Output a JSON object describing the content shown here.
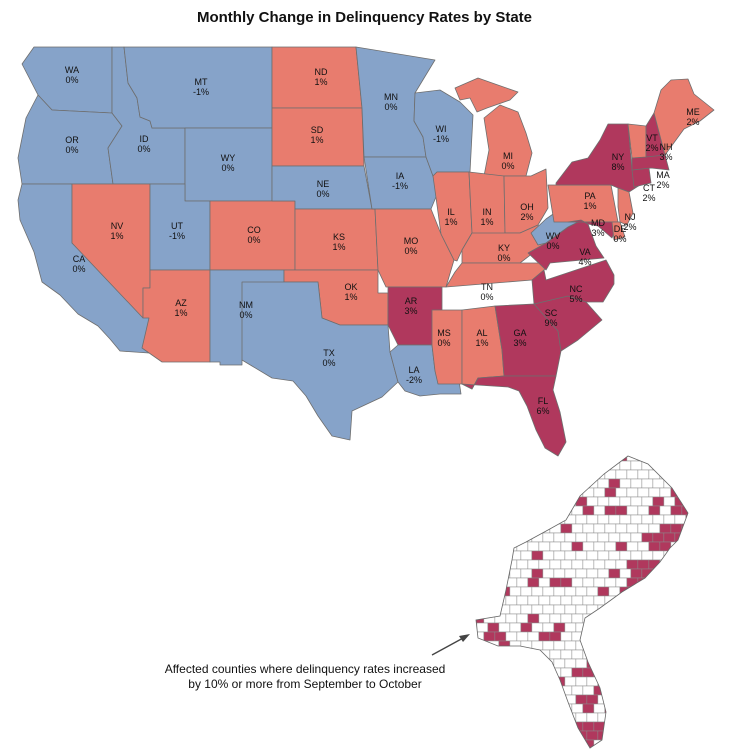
{
  "title": "Monthly Change in Delinquency Rates by State",
  "colors": {
    "decrease_or_zero": "#86a3c9",
    "increase_low": "#e87c6e",
    "increase_high": "#b0385d",
    "border": "#6e6e6e",
    "county_fill": "#ffffff"
  },
  "states": [
    {
      "code": "WA",
      "value": "0%",
      "category": "decrease_or_zero"
    },
    {
      "code": "OR",
      "value": "0%",
      "category": "decrease_or_zero"
    },
    {
      "code": "CA",
      "value": "0%",
      "category": "decrease_or_zero"
    },
    {
      "code": "ID",
      "value": "0%",
      "category": "decrease_or_zero"
    },
    {
      "code": "NV",
      "value": "1%",
      "category": "increase_low"
    },
    {
      "code": "MT",
      "value": "-1%",
      "category": "decrease_or_zero"
    },
    {
      "code": "WY",
      "value": "0%",
      "category": "decrease_or_zero"
    },
    {
      "code": "UT",
      "value": "-1%",
      "category": "decrease_or_zero"
    },
    {
      "code": "AZ",
      "value": "1%",
      "category": "increase_low"
    },
    {
      "code": "CO",
      "value": "0%",
      "category": "increase_low"
    },
    {
      "code": "NM",
      "value": "0%",
      "category": "decrease_or_zero"
    },
    {
      "code": "ND",
      "value": "1%",
      "category": "increase_low"
    },
    {
      "code": "SD",
      "value": "1%",
      "category": "increase_low"
    },
    {
      "code": "NE",
      "value": "0%",
      "category": "decrease_or_zero"
    },
    {
      "code": "KS",
      "value": "1%",
      "category": "increase_low"
    },
    {
      "code": "OK",
      "value": "1%",
      "category": "increase_low"
    },
    {
      "code": "TX",
      "value": "0%",
      "category": "decrease_or_zero"
    },
    {
      "code": "MN",
      "value": "0%",
      "category": "decrease_or_zero"
    },
    {
      "code": "IA",
      "value": "-1%",
      "category": "decrease_or_zero"
    },
    {
      "code": "MO",
      "value": "0%",
      "category": "increase_low"
    },
    {
      "code": "AR",
      "value": "3%",
      "category": "increase_high"
    },
    {
      "code": "LA",
      "value": "-2%",
      "category": "decrease_or_zero"
    },
    {
      "code": "WI",
      "value": "-1%",
      "category": "decrease_or_zero"
    },
    {
      "code": "IL",
      "value": "1%",
      "category": "increase_low"
    },
    {
      "code": "MI",
      "value": "0%",
      "category": "increase_low"
    },
    {
      "code": "IN",
      "value": "1%",
      "category": "increase_low"
    },
    {
      "code": "OH",
      "value": "2%",
      "category": "increase_low"
    },
    {
      "code": "KY",
      "value": "0%",
      "category": "increase_low"
    },
    {
      "code": "TN",
      "value": "0%",
      "category": "increase_low"
    },
    {
      "code": "MS",
      "value": "0%",
      "category": "increase_low"
    },
    {
      "code": "AL",
      "value": "1%",
      "category": "increase_low"
    },
    {
      "code": "GA",
      "value": "3%",
      "category": "increase_high"
    },
    {
      "code": "FL",
      "value": "6%",
      "category": "increase_high"
    },
    {
      "code": "SC",
      "value": "9%",
      "category": "increase_high"
    },
    {
      "code": "NC",
      "value": "5%",
      "category": "increase_high"
    },
    {
      "code": "VA",
      "value": "4%",
      "category": "increase_high"
    },
    {
      "code": "WV",
      "value": "0%",
      "category": "decrease_or_zero"
    },
    {
      "code": "PA",
      "value": "1%",
      "category": "increase_low"
    },
    {
      "code": "NY",
      "value": "8%",
      "category": "increase_high"
    },
    {
      "code": "MD",
      "value": "3%",
      "category": "increase_high"
    },
    {
      "code": "DE",
      "value": "0%",
      "category": "increase_low"
    },
    {
      "code": "NJ",
      "value": "2%",
      "category": "increase_low"
    },
    {
      "code": "CT",
      "value": "2%",
      "category": "increase_high"
    },
    {
      "code": "MA",
      "value": "2%",
      "category": "increase_high"
    },
    {
      "code": "VT",
      "value": "2%",
      "category": "increase_low"
    },
    {
      "code": "NH",
      "value": "3%",
      "category": "increase_high"
    },
    {
      "code": "ME",
      "value": "2%",
      "category": "increase_low"
    }
  ],
  "inset": {
    "caption_line1": "Affected counties where delinquency rates increased",
    "caption_line2": "by 10% or more from September to October"
  }
}
